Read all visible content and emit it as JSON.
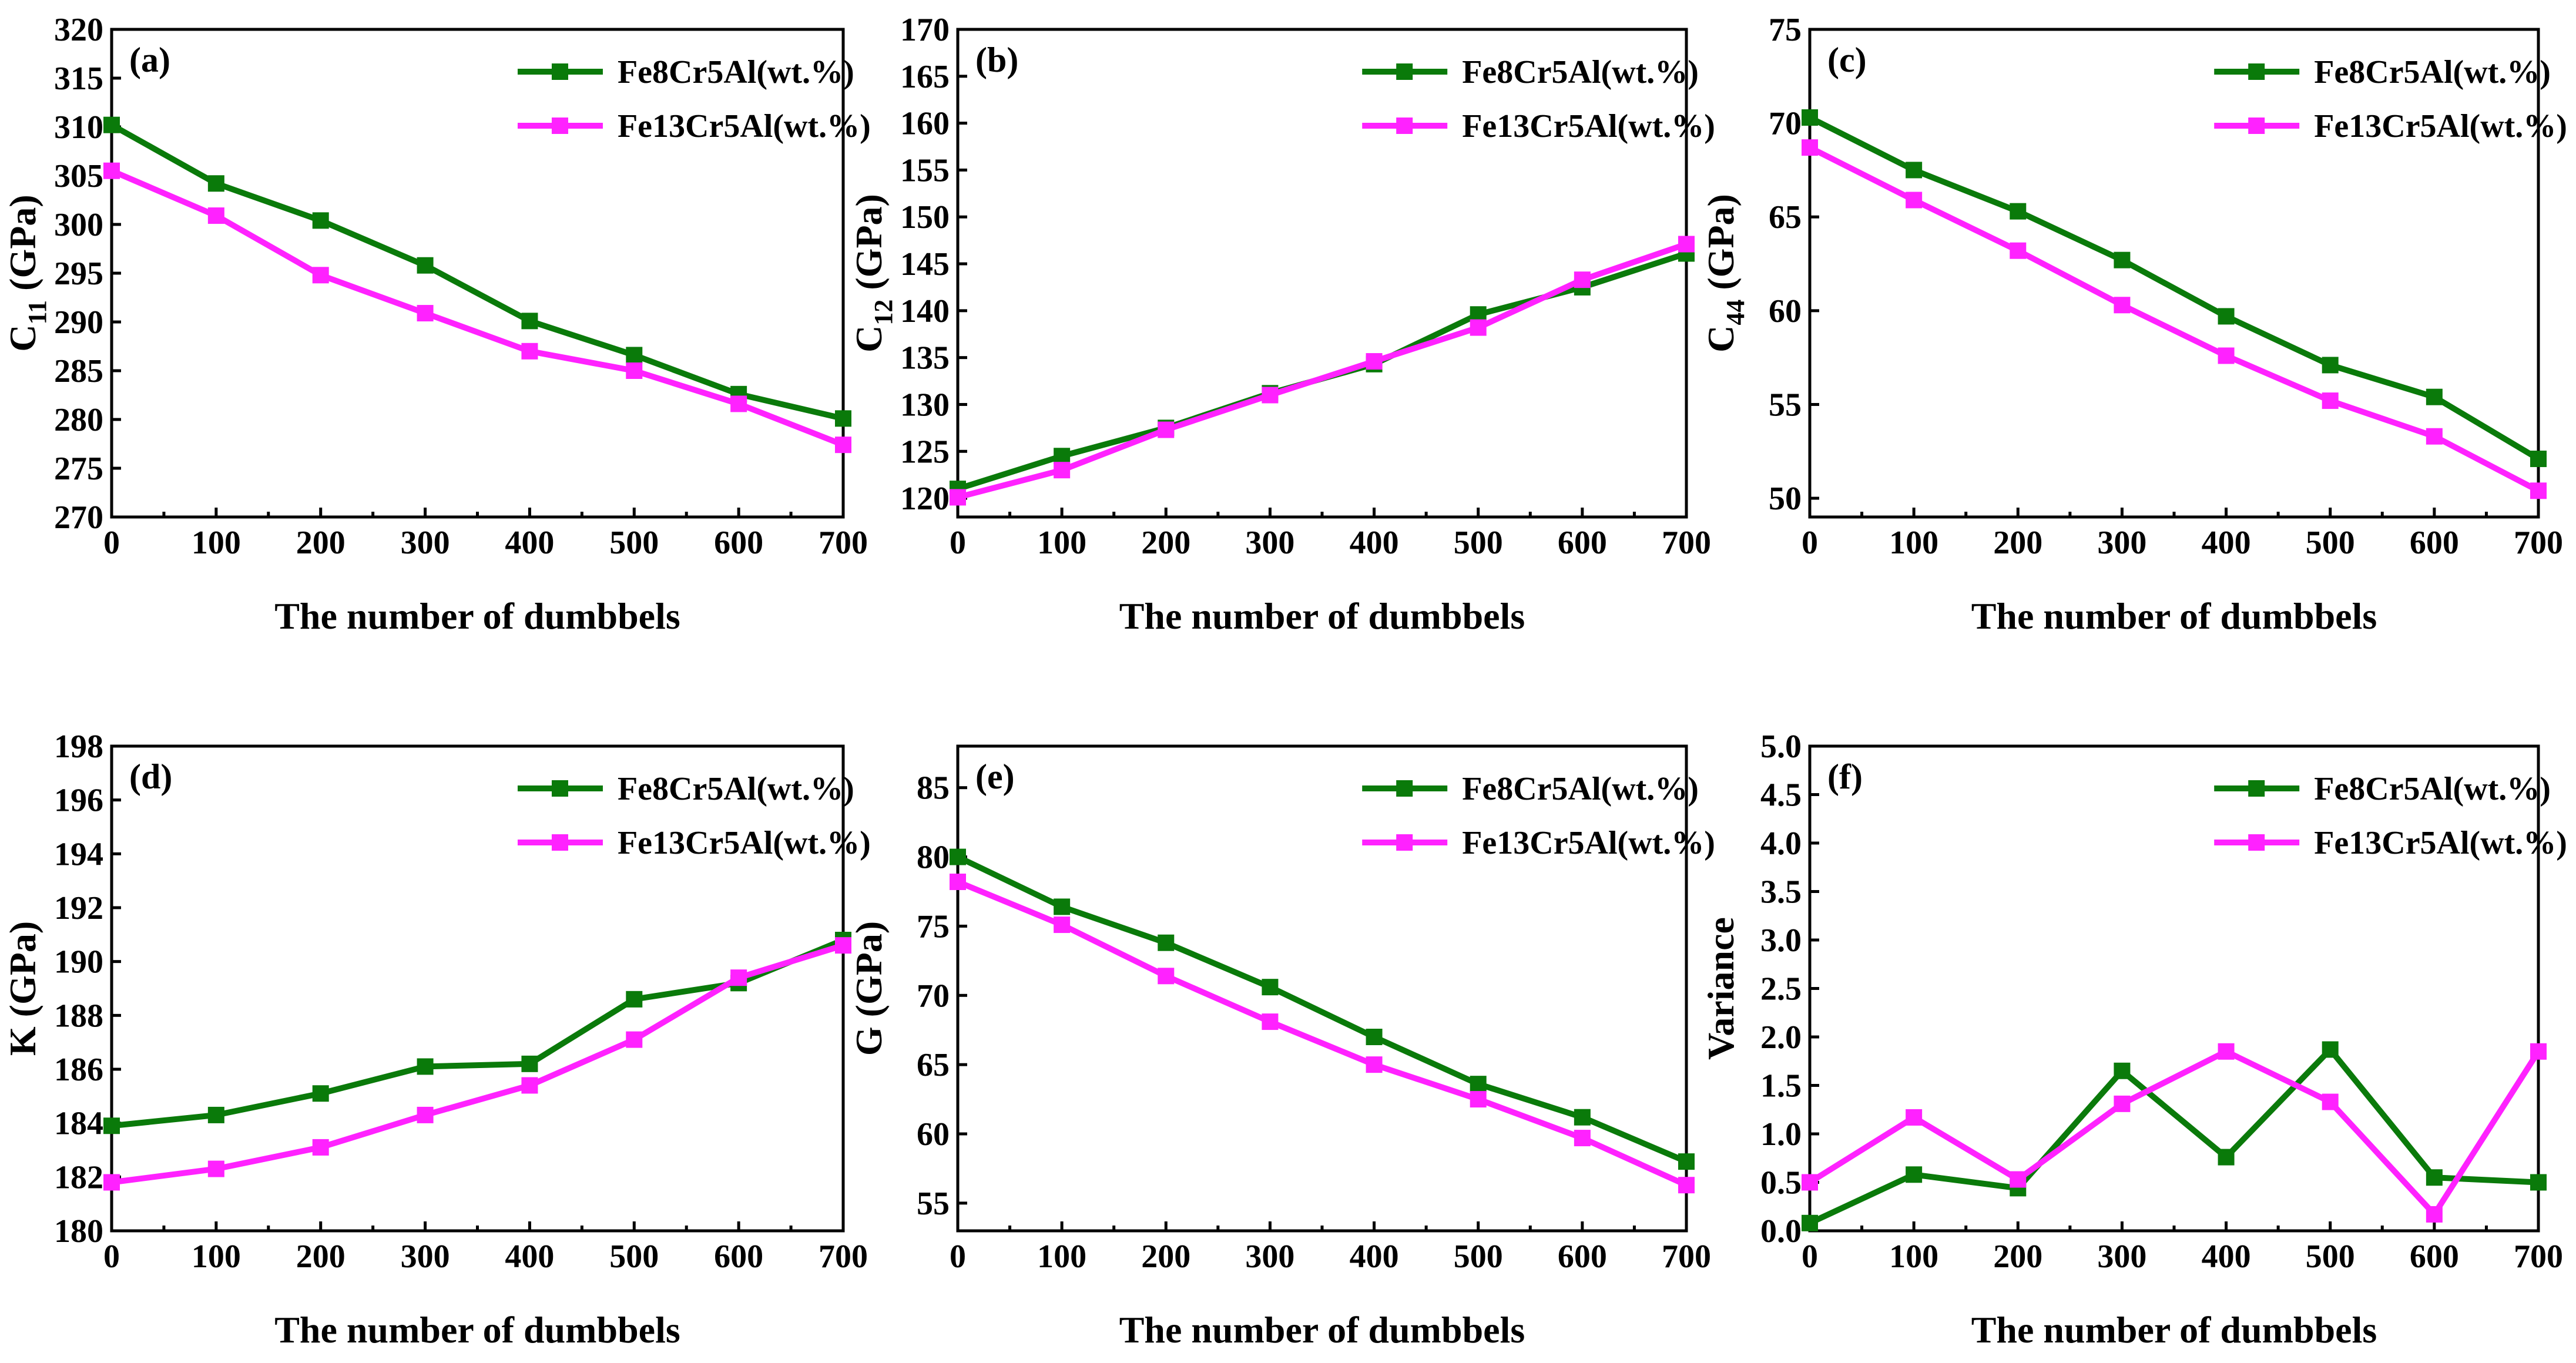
{
  "colors": {
    "green": "#0a7a0a",
    "magenta": "#ff22ff",
    "axis": "#000000"
  },
  "chart_data": [
    {
      "id": "a",
      "type": "line",
      "panel_label": "(a)",
      "xlabel": "The number of dumbbels",
      "ylabel_main": "C",
      "ylabel_sub": "11",
      "ylabel_unit": " (GPa)",
      "x": [
        0,
        100,
        200,
        300,
        400,
        500,
        600,
        700
      ],
      "xlim": [
        0,
        700
      ],
      "ylim": [
        270,
        320
      ],
      "xticks": [
        "0",
        "100",
        "200",
        "300",
        "400",
        "500",
        "600",
        "700"
      ],
      "yticks": [
        "270",
        "275",
        "280",
        "285",
        "290",
        "295",
        "300",
        "305",
        "310",
        "315",
        "320"
      ],
      "legend_position": "top-right",
      "series": [
        {
          "name": "Fe8Cr5Al(wt.%)",
          "color": "#0a7a0a",
          "values": [
            310.2,
            304.2,
            300.4,
            295.8,
            290.1,
            286.6,
            282.6,
            280.1
          ]
        },
        {
          "name": "Fe13Cr5Al(wt.%)",
          "color": "#ff22ff",
          "values": [
            305.5,
            300.9,
            294.8,
            290.9,
            287.0,
            285.0,
            281.6,
            277.4
          ]
        }
      ]
    },
    {
      "id": "b",
      "type": "line",
      "panel_label": "(b)",
      "xlabel": "The number of dumbbels",
      "ylabel_main": "C",
      "ylabel_sub": "12",
      "ylabel_unit": " (GPa)",
      "x": [
        0,
        100,
        200,
        300,
        400,
        500,
        600,
        700
      ],
      "xlim": [
        0,
        700
      ],
      "ylim": [
        118,
        170
      ],
      "xticks": [
        "0",
        "100",
        "200",
        "300",
        "400",
        "500",
        "600",
        "700"
      ],
      "yticks": [
        "120",
        "125",
        "130",
        "135",
        "140",
        "145",
        "150",
        "155",
        "160",
        "165",
        "170"
      ],
      "legend_position": "top-right",
      "series": [
        {
          "name": "Fe8Cr5Al(wt.%)",
          "color": "#0a7a0a",
          "values": [
            121.0,
            124.5,
            127.5,
            131.2,
            134.3,
            139.6,
            142.5,
            146.1
          ]
        },
        {
          "name": "Fe13Cr5Al(wt.%)",
          "color": "#ff22ff",
          "values": [
            120.1,
            123.0,
            127.3,
            131.0,
            134.6,
            138.2,
            143.3,
            147.1
          ]
        }
      ]
    },
    {
      "id": "c",
      "type": "line",
      "panel_label": "(c)",
      "xlabel": "The number of dumbbels",
      "ylabel_main": "C",
      "ylabel_sub": "44",
      "ylabel_unit": " (GPa)",
      "x": [
        0,
        100,
        200,
        300,
        400,
        500,
        600,
        700
      ],
      "xlim": [
        0,
        700
      ],
      "ylim": [
        49,
        75
      ],
      "xticks": [
        "0",
        "100",
        "200",
        "300",
        "400",
        "500",
        "600",
        "700"
      ],
      "yticks": [
        "50",
        "55",
        "60",
        "65",
        "70",
        "75"
      ],
      "legend_position": "top-right",
      "series": [
        {
          "name": "Fe8Cr5Al(wt.%)",
          "color": "#0a7a0a",
          "values": [
            70.3,
            67.5,
            65.3,
            62.7,
            59.7,
            57.1,
            55.4,
            52.1
          ]
        },
        {
          "name": "Fe13Cr5Al(wt.%)",
          "color": "#ff22ff",
          "values": [
            68.7,
            65.9,
            63.2,
            60.3,
            57.6,
            55.2,
            53.3,
            50.4
          ]
        }
      ]
    },
    {
      "id": "d",
      "type": "line",
      "panel_label": "(d)",
      "xlabel": "The number of dumbbels",
      "ylabel_main": "K",
      "ylabel_sub": "",
      "ylabel_unit": " (GPa)",
      "x": [
        0,
        100,
        200,
        300,
        400,
        500,
        600,
        700
      ],
      "xlim": [
        0,
        700
      ],
      "ylim": [
        180,
        198
      ],
      "xticks": [
        "0",
        "100",
        "200",
        "300",
        "400",
        "500",
        "600",
        "700"
      ],
      "yticks": [
        "180",
        "182",
        "184",
        "186",
        "188",
        "190",
        "192",
        "194",
        "196",
        "198"
      ],
      "legend_position": "top-right",
      "series": [
        {
          "name": "Fe8Cr5Al(wt.%)",
          "color": "#0a7a0a",
          "values": [
            183.9,
            184.3,
            185.1,
            186.1,
            186.2,
            188.6,
            189.2,
            190.8
          ]
        },
        {
          "name": "Fe13Cr5Al(wt.%)",
          "color": "#ff22ff",
          "values": [
            181.8,
            182.3,
            183.1,
            184.3,
            185.4,
            187.1,
            189.4,
            190.6
          ]
        }
      ]
    },
    {
      "id": "e",
      "type": "line",
      "panel_label": "(e)",
      "xlabel": "The number of dumbbels",
      "ylabel_main": "G",
      "ylabel_sub": "",
      "ylabel_unit": " (GPa)",
      "x": [
        0,
        100,
        200,
        300,
        400,
        500,
        600,
        700
      ],
      "xlim": [
        0,
        700
      ],
      "ylim": [
        53,
        88
      ],
      "xticks": [
        "0",
        "100",
        "200",
        "300",
        "400",
        "500",
        "600",
        "700"
      ],
      "yticks": [
        "55",
        "60",
        "65",
        "70",
        "75",
        "80",
        "85"
      ],
      "legend_position": "top-right",
      "series": [
        {
          "name": "Fe8Cr5Al(wt.%)",
          "color": "#0a7a0a",
          "values": [
            80.0,
            76.4,
            73.8,
            70.6,
            67.0,
            63.6,
            61.2,
            58.0
          ]
        },
        {
          "name": "Fe13Cr5Al(wt.%)",
          "color": "#ff22ff",
          "values": [
            78.2,
            75.1,
            71.4,
            68.1,
            65.0,
            62.5,
            59.7,
            56.3
          ]
        }
      ]
    },
    {
      "id": "f",
      "type": "line",
      "panel_label": "(f)",
      "xlabel": "The number of dumbbels",
      "ylabel_main": "Variance",
      "ylabel_sub": "",
      "ylabel_unit": "",
      "x": [
        0,
        100,
        200,
        300,
        400,
        500,
        600,
        700
      ],
      "xlim": [
        0,
        700
      ],
      "ylim": [
        0,
        5
      ],
      "xticks": [
        "0",
        "100",
        "200",
        "300",
        "400",
        "500",
        "600",
        "700"
      ],
      "yticks": [
        "0.0",
        "0.5",
        "1.0",
        "1.5",
        "2.0",
        "2.5",
        "3.0",
        "3.5",
        "4.0",
        "4.5",
        "5.0"
      ],
      "legend_position": "top-right",
      "series": [
        {
          "name": "Fe8Cr5Al(wt.%)",
          "color": "#0a7a0a",
          "values": [
            0.08,
            0.58,
            0.44,
            1.65,
            0.76,
            1.87,
            0.55,
            0.5
          ]
        },
        {
          "name": "Fe13Cr5Al(wt.%)",
          "color": "#ff22ff",
          "values": [
            0.5,
            1.17,
            0.53,
            1.31,
            1.85,
            1.33,
            0.17,
            1.85
          ]
        }
      ]
    }
  ]
}
